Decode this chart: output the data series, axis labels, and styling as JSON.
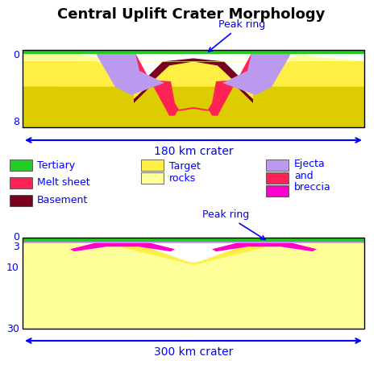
{
  "title": "Central Uplift Crater Morphology",
  "title_fontsize": 13,
  "title_fontweight": "bold",
  "colors": {
    "tertiary": "#22cc22",
    "melt_sheet": "#ff2255",
    "basement": "#7a0020",
    "target_light": "#ffff99",
    "target_mid": "#ffee44",
    "target_dark": "#ddcc00",
    "ejecta_purple": "#bb99ee",
    "ejecta_magenta": "#ff00cc",
    "gray_line": "#999999",
    "background": "#ffffff"
  },
  "crater1_label": "180 km crater",
  "crater2_label": "300 km crater"
}
